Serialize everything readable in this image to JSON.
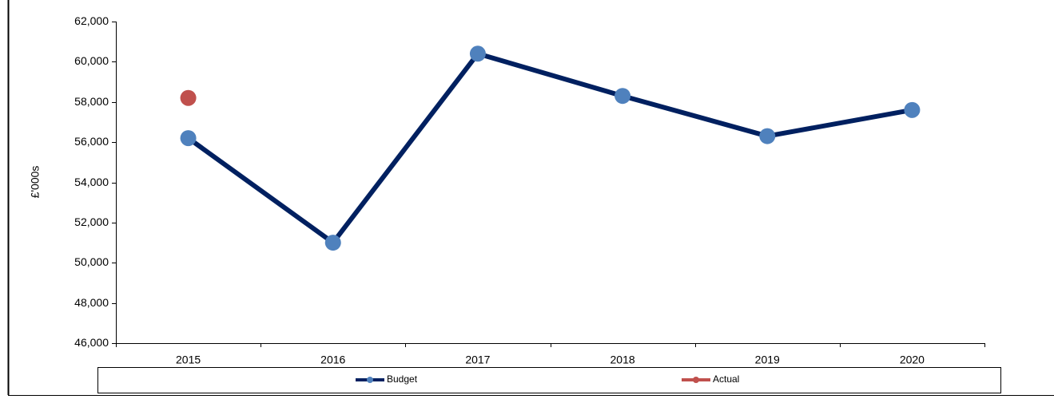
{
  "chart_data": {
    "type": "line",
    "y_label": "£'000s",
    "categories": [
      "2015",
      "2016",
      "2017",
      "2018",
      "2019",
      "2020"
    ],
    "series": [
      {
        "name": "Budget",
        "color": "#002060",
        "marker_color": "#4f81bd",
        "values": [
          56200,
          51000,
          60400,
          58300,
          56300,
          57600
        ]
      },
      {
        "name": "Actual",
        "color": "#c0504d",
        "marker_color": "#c0504d",
        "values": [
          58200,
          null,
          null,
          null,
          null,
          null
        ]
      }
    ],
    "ylim": [
      46000,
      62000
    ],
    "yticks": [
      {
        "value": 46000,
        "label": "46,000"
      },
      {
        "value": 48000,
        "label": "48,000"
      },
      {
        "value": 50000,
        "label": "50,000"
      },
      {
        "value": 52000,
        "label": "52,000"
      },
      {
        "value": 54000,
        "label": "54,000"
      },
      {
        "value": 56000,
        "label": "56,000"
      },
      {
        "value": 58000,
        "label": "58,000"
      },
      {
        "value": 60000,
        "label": "60,000"
      },
      {
        "value": 62000,
        "label": "62,000"
      }
    ],
    "grid": false,
    "legend": "bottom"
  }
}
